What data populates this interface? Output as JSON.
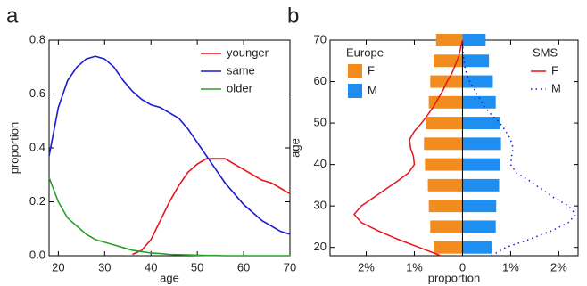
{
  "chart_data": [
    {
      "type": "line",
      "label": "a",
      "xlabel": "age",
      "ylabel": "proportion",
      "x": [
        18,
        20,
        22,
        24,
        26,
        28,
        30,
        32,
        34,
        36,
        38,
        40,
        42,
        44,
        46,
        48,
        50,
        52,
        54,
        56,
        58,
        60,
        62,
        64,
        66,
        68,
        70
      ],
      "series": [
        {
          "name": "younger",
          "color": "#e8141a",
          "values": [
            null,
            null,
            null,
            null,
            null,
            null,
            null,
            null,
            null,
            0.005,
            0.02,
            0.06,
            0.13,
            0.2,
            0.26,
            0.31,
            0.34,
            0.36,
            0.36,
            0.36,
            0.34,
            0.32,
            0.3,
            0.28,
            0.27,
            0.25,
            0.23
          ]
        },
        {
          "name": "same",
          "color": "#1a1ad0",
          "values": [
            0.37,
            0.55,
            0.65,
            0.7,
            0.73,
            0.74,
            0.73,
            0.7,
            0.65,
            0.61,
            0.58,
            0.56,
            0.55,
            0.53,
            0.51,
            0.47,
            0.42,
            0.37,
            0.32,
            0.27,
            0.23,
            0.19,
            0.16,
            0.13,
            0.11,
            0.09,
            0.08
          ]
        },
        {
          "name": "older",
          "color": "#2aa02a",
          "values": [
            0.29,
            0.2,
            0.14,
            0.11,
            0.08,
            0.06,
            0.05,
            0.04,
            0.03,
            0.02,
            0.015,
            0.01,
            0.008,
            0.005,
            0.004,
            0.003,
            0.002,
            0.001,
            0.001,
            0,
            0,
            0,
            0,
            0,
            0,
            0,
            0
          ]
        }
      ],
      "xlim": [
        18,
        70
      ],
      "xticks": [
        20,
        30,
        40,
        50,
        60,
        70
      ],
      "ylim": [
        0,
        0.8
      ],
      "yticks": [
        {
          "value": 0,
          "label": "0.0"
        },
        0.2,
        0.4,
        0.6,
        0.8
      ],
      "legend": "upper right"
    },
    {
      "type": "pyramid",
      "label": "b",
      "xlabel": "proportion",
      "ylabel": "age",
      "bars": {
        "legend_title": "Europe",
        "categories": [
          20,
          25,
          30,
          35,
          40,
          45,
          50,
          55,
          60,
          65,
          70
        ],
        "series": [
          {
            "name": "F",
            "color": "#f28c1e",
            "values": [
              -0.6,
              -0.67,
              -0.7,
              -0.72,
              -0.78,
              -0.8,
              -0.76,
              -0.7,
              -0.67,
              -0.6,
              -0.55
            ]
          },
          {
            "name": "M",
            "color": "#1e8ef0",
            "values": [
              0.61,
              0.69,
              0.7,
              0.76,
              0.78,
              0.8,
              0.78,
              0.69,
              0.63,
              0.55,
              0.48
            ]
          }
        ]
      },
      "lines": {
        "legend_title": "SMS",
        "ages": [
          18,
          20,
          22,
          24,
          26,
          28,
          30,
          32,
          34,
          36,
          38,
          40,
          42,
          44,
          46,
          48,
          50,
          52,
          54,
          56,
          58,
          60,
          62,
          64,
          66,
          68,
          70
        ],
        "series": [
          {
            "name": "F",
            "color": "#e8141a",
            "dash": "solid",
            "values": [
              -0.45,
              -0.9,
              -1.35,
              -1.75,
              -2.1,
              -2.25,
              -2.1,
              -1.85,
              -1.6,
              -1.35,
              -1.12,
              -1.0,
              -1.02,
              -1.08,
              -1.1,
              -1.0,
              -0.85,
              -0.72,
              -0.6,
              -0.5,
              -0.4,
              -0.32,
              -0.22,
              -0.15,
              -0.08,
              -0.04,
              0
            ]
          },
          {
            "name": "M",
            "color": "#1a1ad0",
            "dash": "dotted",
            "values": [
              0.6,
              0.9,
              1.4,
              1.85,
              2.2,
              2.35,
              2.2,
              1.9,
              1.65,
              1.4,
              1.12,
              1.0,
              1.02,
              1.05,
              1.0,
              0.9,
              0.78,
              0.6,
              0.45,
              0.35,
              0.25,
              0.15,
              0.08,
              0.04,
              0.02,
              0.01,
              0
            ]
          }
        ]
      },
      "xlim": [
        -2.75,
        2.4
      ],
      "xticks": [
        {
          "value": -2,
          "label": "2%"
        },
        {
          "value": -1,
          "label": "1%"
        },
        0,
        {
          "value": 1,
          "label": "1%"
        },
        {
          "value": 2,
          "label": "2%"
        }
      ],
      "ylim": [
        18,
        70
      ],
      "yticks": [
        20,
        30,
        40,
        50,
        60,
        70
      ]
    }
  ]
}
